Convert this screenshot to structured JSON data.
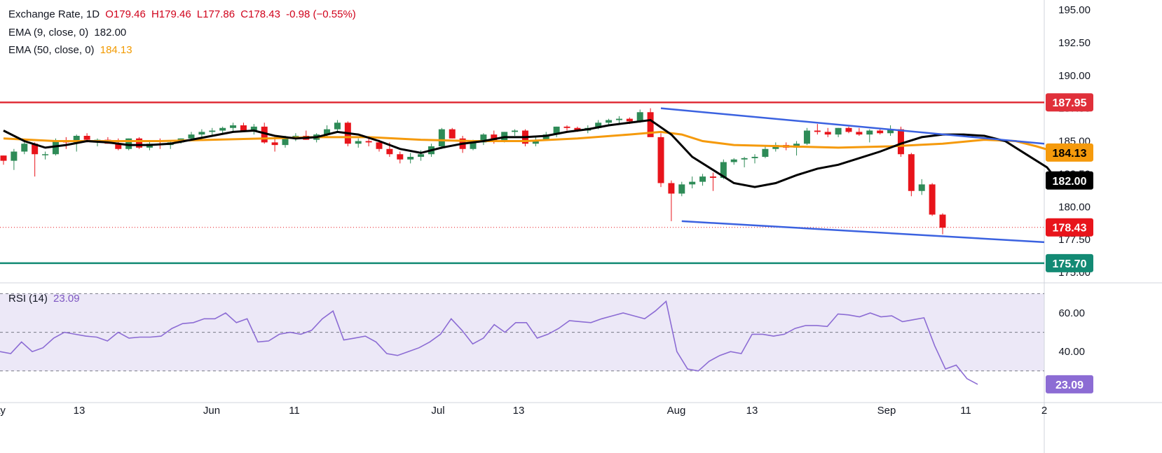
{
  "legend": {
    "main_title": "Exchange Rate, 1D",
    "ohlc": {
      "o": "O179.46",
      "h": "H179.46",
      "l": "L177.86",
      "c": "C178.43",
      "chg": "-0.98 (−0.55%)"
    },
    "ema9_label": "EMA (9, close, 0)",
    "ema9_value": "182.00",
    "ema50_label": "EMA (50, close, 0)",
    "ema50_value": "184.13",
    "rsi_label": "RSI (14)",
    "rsi_value": "23.09"
  },
  "colors": {
    "up": "#2e8b57",
    "down": "#e8141b",
    "ema9": "#000000",
    "ema50": "#f59a0c",
    "resistance": "#e0303a",
    "support": "#138a74",
    "channel": "#3b62e0",
    "rsi": "#8c6cd4",
    "rsi_band": "#ece8f7"
  },
  "chart_data": [
    {
      "type": "candlestick",
      "title": "Exchange Rate, 1D",
      "x_ticks": [
        "ay",
        "13",
        "Jun",
        "11",
        "Jul",
        "13",
        "Aug",
        "13",
        "Sep",
        "11",
        "2"
      ],
      "y_ticks": [
        "195.00",
        "192.50",
        "190.00",
        "187.50",
        "185.00",
        "182.50",
        "180.00",
        "177.50",
        "175.00"
      ],
      "ylim": [
        175.0,
        196.2
      ],
      "last_close": 178.43,
      "price_labels": [
        {
          "text": "187.95",
          "value": 187.95,
          "style": "resistance"
        },
        {
          "text": "184.13",
          "value": 184.13,
          "style": "ema50"
        },
        {
          "text": "182.00",
          "value": 182.0,
          "style": "ema9"
        },
        {
          "text": "178.43",
          "value": 178.43,
          "style": "last"
        },
        {
          "text": "175.70",
          "value": 175.7,
          "style": "support"
        }
      ],
      "horizontal_levels": [
        {
          "value": 187.95,
          "style": "resistance"
        },
        {
          "value": 175.7,
          "style": "support"
        }
      ],
      "trendlines": [
        {
          "from": [
            70,
            187.5
          ],
          "to": [
            113,
            184.8
          ]
        },
        {
          "from": [
            72,
            178.9
          ],
          "to": [
            113,
            177.3
          ]
        }
      ],
      "candles": [
        [
          183.9,
          183.9,
          183.2,
          183.5
        ],
        [
          183.5,
          184.4,
          182.8,
          184.2
        ],
        [
          184.2,
          185.0,
          184.0,
          184.8
        ],
        [
          184.8,
          184.9,
          182.3,
          184.0
        ],
        [
          184.0,
          184.2,
          183.6,
          184.0
        ],
        [
          184.0,
          185.2,
          183.9,
          185.0
        ],
        [
          185.0,
          185.3,
          184.4,
          184.9
        ],
        [
          184.9,
          185.5,
          184.2,
          185.4
        ],
        [
          185.4,
          185.6,
          184.9,
          185.1
        ],
        [
          185.1,
          185.2,
          184.6,
          185.1
        ],
        [
          185.1,
          185.3,
          184.8,
          184.8
        ],
        [
          184.8,
          185.2,
          184.3,
          184.4
        ],
        [
          184.4,
          185.2,
          184.3,
          185.2
        ],
        [
          185.2,
          185.3,
          184.4,
          184.5
        ],
        [
          184.5,
          185.0,
          184.3,
          184.8
        ],
        [
          184.8,
          185.2,
          184.4,
          184.7
        ],
        [
          184.7,
          185.0,
          184.4,
          184.9
        ],
        [
          184.9,
          185.2,
          184.8,
          185.2
        ],
        [
          185.2,
          185.7,
          185.0,
          185.5
        ],
        [
          185.5,
          185.9,
          185.3,
          185.7
        ],
        [
          185.7,
          186.0,
          185.4,
          185.8
        ],
        [
          185.8,
          186.1,
          185.5,
          186.0
        ],
        [
          186.0,
          186.4,
          185.7,
          186.2
        ],
        [
          186.2,
          186.4,
          185.7,
          185.8
        ],
        [
          185.8,
          186.3,
          185.5,
          186.1
        ],
        [
          186.1,
          186.4,
          184.8,
          184.9
        ],
        [
          184.9,
          185.3,
          184.2,
          184.7
        ],
        [
          184.7,
          185.4,
          184.5,
          185.2
        ],
        [
          185.2,
          185.6,
          185.0,
          185.4
        ],
        [
          185.4,
          185.8,
          185.1,
          185.1
        ],
        [
          185.1,
          185.6,
          184.9,
          185.5
        ],
        [
          185.5,
          186.2,
          185.3,
          185.9
        ],
        [
          185.9,
          186.6,
          185.7,
          186.4
        ],
        [
          186.4,
          186.5,
          184.6,
          184.8
        ],
        [
          184.8,
          185.2,
          184.5,
          185.0
        ],
        [
          185.0,
          185.3,
          184.6,
          184.9
        ],
        [
          184.9,
          185.1,
          184.2,
          184.4
        ],
        [
          184.4,
          184.9,
          183.8,
          184.0
        ],
        [
          184.0,
          184.2,
          183.3,
          183.6
        ],
        [
          183.6,
          184.1,
          183.3,
          183.8
        ],
        [
          183.8,
          184.3,
          183.5,
          184.0
        ],
        [
          184.0,
          184.8,
          183.8,
          184.6
        ],
        [
          184.6,
          186.0,
          184.4,
          185.9
        ],
        [
          185.9,
          186.0,
          185.2,
          185.2
        ],
        [
          185.2,
          185.4,
          184.1,
          184.4
        ],
        [
          184.4,
          185.1,
          184.3,
          184.9
        ],
        [
          184.9,
          185.6,
          184.7,
          185.5
        ],
        [
          185.5,
          185.8,
          184.8,
          185.0
        ],
        [
          185.0,
          185.7,
          184.9,
          185.7
        ],
        [
          185.7,
          185.9,
          185.4,
          185.8
        ],
        [
          185.8,
          185.9,
          184.6,
          184.8
        ],
        [
          184.8,
          185.4,
          184.6,
          185.1
        ],
        [
          185.1,
          185.7,
          185.0,
          185.5
        ],
        [
          185.5,
          186.1,
          185.3,
          186.1
        ],
        [
          186.1,
          186.2,
          185.8,
          186.0
        ],
        [
          186.0,
          186.1,
          185.7,
          185.8
        ],
        [
          185.8,
          186.2,
          185.6,
          186.0
        ],
        [
          186.0,
          186.6,
          185.9,
          186.4
        ],
        [
          186.4,
          186.7,
          186.2,
          186.6
        ],
        [
          186.6,
          186.9,
          186.3,
          186.7
        ],
        [
          186.7,
          186.8,
          186.3,
          186.5
        ],
        [
          186.5,
          187.4,
          186.4,
          187.2
        ],
        [
          187.2,
          187.5,
          185.5,
          185.3
        ],
        [
          185.3,
          185.6,
          181.5,
          181.8
        ],
        [
          181.8,
          182.0,
          178.9,
          181.0
        ],
        [
          181.0,
          181.9,
          180.8,
          181.7
        ],
        [
          181.7,
          182.3,
          181.4,
          181.9
        ],
        [
          181.9,
          182.5,
          181.6,
          182.3
        ],
        [
          182.3,
          182.6,
          181.2,
          182.2
        ],
        [
          182.2,
          183.6,
          182.1,
          183.4
        ],
        [
          183.4,
          183.7,
          183.2,
          183.6
        ],
        [
          183.6,
          183.8,
          183.0,
          183.7
        ],
        [
          183.7,
          184.0,
          183.3,
          183.8
        ],
        [
          183.8,
          184.6,
          183.7,
          184.4
        ],
        [
          184.4,
          184.9,
          184.2,
          184.7
        ],
        [
          184.7,
          184.9,
          184.3,
          184.5
        ],
        [
          184.5,
          185.0,
          183.9,
          184.8
        ],
        [
          184.8,
          186.0,
          184.7,
          185.8
        ],
        [
          185.8,
          186.3,
          185.5,
          185.7
        ],
        [
          185.7,
          186.0,
          185.3,
          185.5
        ],
        [
          185.5,
          186.0,
          185.3,
          186.0
        ],
        [
          186.0,
          186.1,
          185.6,
          185.7
        ],
        [
          185.7,
          186.0,
          185.4,
          185.5
        ],
        [
          185.5,
          185.9,
          184.9,
          185.8
        ],
        [
          185.8,
          185.9,
          185.5,
          185.6
        ],
        [
          185.6,
          186.2,
          185.4,
          185.9
        ],
        [
          185.9,
          186.1,
          183.8,
          184.0
        ],
        [
          184.0,
          184.1,
          180.8,
          181.2
        ],
        [
          181.2,
          182.1,
          180.9,
          181.7
        ],
        [
          181.7,
          181.8,
          179.3,
          179.4
        ],
        [
          179.4,
          179.5,
          177.9,
          178.4
        ]
      ],
      "ema9": [
        [
          0,
          185.8
        ],
        [
          2,
          185.0
        ],
        [
          4,
          184.5
        ],
        [
          6,
          184.7
        ],
        [
          8,
          185.0
        ],
        [
          10,
          184.9
        ],
        [
          12,
          184.7
        ],
        [
          14,
          184.7
        ],
        [
          16,
          184.8
        ],
        [
          18,
          185.1
        ],
        [
          20,
          185.4
        ],
        [
          22,
          185.7
        ],
        [
          24,
          185.8
        ],
        [
          26,
          185.4
        ],
        [
          28,
          185.2
        ],
        [
          30,
          185.3
        ],
        [
          32,
          185.7
        ],
        [
          34,
          185.5
        ],
        [
          36,
          185.0
        ],
        [
          38,
          184.4
        ],
        [
          40,
          184.1
        ],
        [
          42,
          184.5
        ],
        [
          44,
          184.8
        ],
        [
          46,
          185.0
        ],
        [
          48,
          185.3
        ],
        [
          50,
          185.3
        ],
        [
          52,
          185.4
        ],
        [
          54,
          185.7
        ],
        [
          56,
          185.9
        ],
        [
          58,
          186.2
        ],
        [
          60,
          186.4
        ],
        [
          62,
          186.6
        ],
        [
          64,
          185.5
        ],
        [
          66,
          183.8
        ],
        [
          68,
          182.8
        ],
        [
          70,
          181.8
        ],
        [
          72,
          181.5
        ],
        [
          74,
          181.8
        ],
        [
          76,
          182.4
        ],
        [
          78,
          182.9
        ],
        [
          80,
          183.2
        ],
        [
          82,
          183.7
        ],
        [
          84,
          184.2
        ],
        [
          86,
          184.8
        ],
        [
          88,
          185.3
        ],
        [
          90,
          185.5
        ],
        [
          92,
          185.5
        ],
        [
          94,
          185.4
        ],
        [
          96,
          185.0
        ],
        [
          98,
          184.0
        ],
        [
          100,
          183.0
        ],
        [
          101,
          182.0
        ]
      ],
      "ema50": [
        [
          0,
          185.2
        ],
        [
          5,
          185.0
        ],
        [
          10,
          185.0
        ],
        [
          15,
          185.0
        ],
        [
          20,
          185.1
        ],
        [
          25,
          185.2
        ],
        [
          30,
          185.3
        ],
        [
          35,
          185.3
        ],
        [
          40,
          185.1
        ],
        [
          45,
          185.0
        ],
        [
          50,
          185.0
        ],
        [
          55,
          185.2
        ],
        [
          60,
          185.5
        ],
        [
          63,
          185.7
        ],
        [
          65,
          185.5
        ],
        [
          67,
          185.0
        ],
        [
          70,
          184.7
        ],
        [
          75,
          184.6
        ],
        [
          80,
          184.5
        ],
        [
          85,
          184.6
        ],
        [
          90,
          184.8
        ],
        [
          94,
          185.1
        ],
        [
          97,
          185.0
        ],
        [
          99,
          184.6
        ],
        [
          101,
          184.13
        ]
      ]
    },
    {
      "type": "line",
      "title": "RSI (14)",
      "y_ticks": [
        "60.00",
        "40.00"
      ],
      "ylim": [
        18,
        72
      ],
      "levels": [
        70,
        50,
        30
      ],
      "last_value_label": "23.09",
      "values": [
        [
          0,
          40
        ],
        [
          1,
          39
        ],
        [
          2,
          45
        ],
        [
          3,
          40
        ],
        [
          4,
          42
        ],
        [
          5,
          47
        ],
        [
          6,
          50
        ],
        [
          7,
          49
        ],
        [
          8,
          48
        ],
        [
          9,
          47.5
        ],
        [
          10,
          45.5
        ],
        [
          11,
          50
        ],
        [
          12,
          47
        ],
        [
          13,
          47.5
        ],
        [
          14,
          47.5
        ],
        [
          15,
          48
        ],
        [
          16,
          52
        ],
        [
          17,
          54.5
        ],
        [
          18,
          55
        ],
        [
          19,
          57
        ],
        [
          20,
          57
        ],
        [
          21,
          60
        ],
        [
          22,
          55
        ],
        [
          23,
          57
        ],
        [
          24,
          45
        ],
        [
          25,
          45.5
        ],
        [
          26,
          49
        ],
        [
          27,
          50
        ],
        [
          28,
          49
        ],
        [
          29,
          51
        ],
        [
          30,
          57
        ],
        [
          31,
          61
        ],
        [
          32,
          46
        ],
        [
          33,
          47
        ],
        [
          34,
          48
        ],
        [
          35,
          45
        ],
        [
          36,
          39
        ],
        [
          37,
          38
        ],
        [
          38,
          40
        ],
        [
          39,
          42
        ],
        [
          40,
          45
        ],
        [
          41,
          49
        ],
        [
          42,
          57
        ],
        [
          43,
          51
        ],
        [
          44,
          44
        ],
        [
          45,
          47
        ],
        [
          46,
          54
        ],
        [
          47,
          50
        ],
        [
          48,
          55
        ],
        [
          49,
          55
        ],
        [
          50,
          47
        ],
        [
          51,
          49
        ],
        [
          52,
          52
        ],
        [
          53,
          56
        ],
        [
          54,
          55.5
        ],
        [
          55,
          55
        ],
        [
          56,
          57
        ],
        [
          57,
          58.5
        ],
        [
          58,
          60
        ],
        [
          59,
          58.5
        ],
        [
          60,
          57
        ],
        [
          61,
          61
        ],
        [
          62,
          66
        ],
        [
          63,
          40
        ],
        [
          64,
          31
        ],
        [
          65,
          30
        ],
        [
          66,
          35
        ],
        [
          67,
          38
        ],
        [
          68,
          40
        ],
        [
          69,
          39
        ],
        [
          70,
          49
        ],
        [
          71,
          49
        ],
        [
          72,
          48
        ],
        [
          73,
          49
        ],
        [
          74,
          52
        ],
        [
          75,
          53.5
        ],
        [
          76,
          53.5
        ],
        [
          77,
          53
        ],
        [
          78,
          59.5
        ],
        [
          79,
          59
        ],
        [
          80,
          58
        ],
        [
          81,
          60
        ],
        [
          82,
          58
        ],
        [
          83,
          58.5
        ],
        [
          84,
          55.5
        ],
        [
          85,
          56.5
        ],
        [
          86,
          57.5
        ],
        [
          87,
          43
        ],
        [
          88,
          31
        ],
        [
          89,
          33
        ],
        [
          90,
          26
        ],
        [
          91,
          23.09
        ]
      ]
    }
  ]
}
